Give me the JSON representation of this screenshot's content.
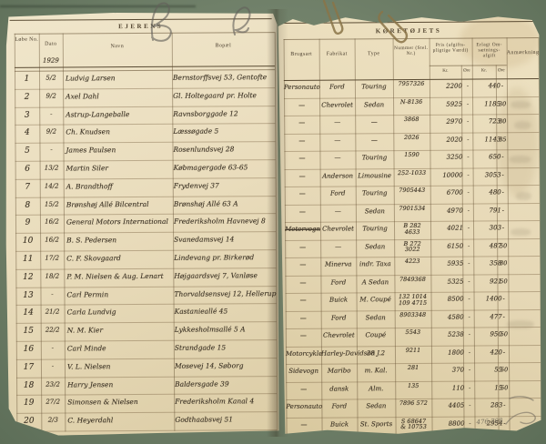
{
  "left_page": {
    "title": "EJERENS",
    "col_no": "Løbe No.",
    "col_date": "Dato",
    "col_name": "Navn",
    "col_address": "Bopæl",
    "year_note": "1929",
    "rows": [
      {
        "no": "1",
        "date": "5/2",
        "name": "Ludvig Larsen",
        "address": "Bernstorffsvej 53, Gentofte"
      },
      {
        "no": "2",
        "date": "9/2",
        "name": "Axel Dahl",
        "address": "Gl. Holtegaard pr. Holte"
      },
      {
        "no": "3",
        "date": "-",
        "name": "Astrup-Langeballe",
        "address": "Ravnsborggade 12"
      },
      {
        "no": "4",
        "date": "9/2",
        "name": "Ch. Knudsen",
        "address": "Læssøgade 5"
      },
      {
        "no": "5",
        "date": "-",
        "name": "James Paulsen",
        "address": "Rosenlundsvej 28"
      },
      {
        "no": "6",
        "date": "13/2",
        "name": "Martin Siler",
        "address": "Købmagergade 63-65"
      },
      {
        "no": "7",
        "date": "14/2",
        "name": "A. Brandthoff",
        "address": "Frydenvej 37"
      },
      {
        "no": "8",
        "date": "15/2",
        "name": "Brønshøj Allé Bilcentral",
        "address": "Brønshøj Allé 63 A"
      },
      {
        "no": "9",
        "date": "16/2",
        "name": "General Motors International",
        "address": "Frederiksholm Havnevej 8"
      },
      {
        "no": "10",
        "date": "16/2",
        "name": "B. S. Pedersen",
        "address": "Svanedamsvej 14"
      },
      {
        "no": "11",
        "date": "17/2",
        "name": "C. F. Skovgaard",
        "address": "Lindevang pr. Birkerød"
      },
      {
        "no": "12",
        "date": "18/2",
        "name": "P. M. Nielsen & Aug. Lenart",
        "address": "Højgaardsvej 7, Vanløse"
      },
      {
        "no": "13",
        "date": "-",
        "name": "Carl Permin",
        "address": "Thorvaldsensvej 12, Hellerup"
      },
      {
        "no": "14",
        "date": "21/2",
        "name": "Carla Lundvig",
        "address": "Kastanieallé 45"
      },
      {
        "no": "15",
        "date": "22/2",
        "name": "N. M. Kier",
        "address": "Lykkesholmsallé 5 A"
      },
      {
        "no": "16",
        "date": "-",
        "name": "Carl Minde",
        "address": "Strandgade 15"
      },
      {
        "no": "17",
        "date": "-",
        "name": "V. L. Nielsen",
        "address": "Mosevej 14, Søborg"
      },
      {
        "no": "18",
        "date": "23/2",
        "name": "Harry Jensen",
        "address": "Baldersgade 39"
      },
      {
        "no": "19",
        "date": "27/2",
        "name": "Simonsen & Nielsen",
        "address": "Frederiksholm Kanal 4"
      },
      {
        "no": "20",
        "date": "2/3",
        "name": "C. Heyerdahl",
        "address": "Godthaabsvej 51"
      }
    ]
  },
  "right_page": {
    "title": "KØRETØJETS",
    "col_use": "Brugsart",
    "col_make": "Fabrikat",
    "col_type": "Type",
    "col_number": "Nummer (Stel. Nr.)",
    "col_price": "Pris (afgifts- pligtige Værdi)",
    "col_tax": "Erlagt Om- sætnings- afgift",
    "col_remark": "Anmærkning",
    "unit_kr": "Kr.",
    "unit_ore": "Øre",
    "pencil_note": "476 708",
    "rows": [
      {
        "use": "Personauto",
        "make": "Ford",
        "type": "Touring",
        "number": "7957326",
        "price_kr": "2200",
        "price_ore": "-",
        "tax_kr": "440",
        "tax_ore": "-"
      },
      {
        "use": "—",
        "make": "Chevrolet",
        "type": "Sedan",
        "number": "N-8136",
        "price_kr": "5925",
        "price_ore": "-",
        "tax_kr": "1185",
        "tax_ore": "30"
      },
      {
        "use": "—",
        "make": "—",
        "type": "—",
        "number": "3868",
        "price_kr": "2970",
        "price_ore": "-",
        "tax_kr": "723",
        "tax_ore": "80"
      },
      {
        "use": "—",
        "make": "—",
        "type": "—",
        "number": "2026",
        "price_kr": "2020",
        "price_ore": "-",
        "tax_kr": "1143",
        "tax_ore": "85"
      },
      {
        "use": "—",
        "make": "—",
        "type": "Touring",
        "number": "1590",
        "price_kr": "3250",
        "price_ore": "-",
        "tax_kr": "650",
        "tax_ore": "-"
      },
      {
        "use": "—",
        "make": "Anderson",
        "type": "Limousine",
        "number": "252-1033",
        "price_kr": "10000",
        "price_ore": "-",
        "tax_kr": "3053",
        "tax_ore": "-"
      },
      {
        "use": "—",
        "make": "Ford",
        "type": "Touring",
        "number": "7905443",
        "price_kr": "6700",
        "price_ore": "-",
        "tax_kr": "480",
        "tax_ore": "-"
      },
      {
        "use": "—",
        "make": "—",
        "type": "Sedan",
        "number": "7901534",
        "price_kr": "4970",
        "price_ore": "-",
        "tax_kr": "791",
        "tax_ore": "-"
      },
      {
        "use_struck": "Motorvogn",
        "make": "Chevrolet",
        "type": "Touring",
        "number": "B 282\n4633",
        "price_kr": "4021",
        "price_ore": "-",
        "tax_kr": "303",
        "tax_ore": "-"
      },
      {
        "use": "—",
        "make": "—",
        "type": "Sedan",
        "number": "B 272\n3022",
        "price_kr": "6150",
        "price_ore": "-",
        "tax_kr": "487",
        "tax_ore": "50"
      },
      {
        "use": "—",
        "make": "Minerva",
        "type": "indr. Taxa",
        "number": "4223",
        "price_kr": "5935",
        "price_ore": "-",
        "tax_kr": "358",
        "tax_ore": "80"
      },
      {
        "use": "—",
        "make": "Ford",
        "type": "A Sedan",
        "number": "7849368",
        "price_kr": "5325",
        "price_ore": "-",
        "tax_kr": "921",
        "tax_ore": "50"
      },
      {
        "use": "—",
        "make": "Buick",
        "type": "M. Coupé",
        "number": "132 1014\n109 4715",
        "price_kr": "8500",
        "price_ore": "-",
        "tax_kr": "1400",
        "tax_ore": "-"
      },
      {
        "use": "—",
        "make": "Ford",
        "type": "Sedan",
        "number": "8903348",
        "price_kr": "4580",
        "price_ore": "-",
        "tax_kr": "477",
        "tax_ore": "-"
      },
      {
        "use": "—",
        "make": "Chevrolet",
        "type": "Coupé",
        "number": "5543",
        "price_kr": "5238",
        "price_ore": "-",
        "tax_kr": "950",
        "tax_ore": "50"
      },
      {
        "use": "Motorcykle",
        "make": "Harley-Davidson",
        "type": "28 J.2",
        "number": "9211",
        "price_kr": "1800",
        "price_ore": "-",
        "tax_kr": "420",
        "tax_ore": "-"
      },
      {
        "use": "Sidevogn",
        "make": "Maribo",
        "type": "m. Kal.",
        "number": "281",
        "price_kr": "370",
        "price_ore": "-",
        "tax_kr": "55",
        "tax_ore": "50"
      },
      {
        "use": "—",
        "make": "dansk",
        "type": "Alm.",
        "number": "135",
        "price_kr": "110",
        "price_ore": "-",
        "tax_kr": "15",
        "tax_ore": "50"
      },
      {
        "use": "Personauto",
        "make": "Ford",
        "type": "Sedan",
        "number": "7896 572",
        "price_kr": "4405",
        "price_ore": "-",
        "tax_kr": "283",
        "tax_ore": "-"
      },
      {
        "use": "—",
        "make": "Buick",
        "type": "St. Sports",
        "number": "S 68647\n& 10753",
        "price_kr": "8800",
        "price_ore": "-",
        "tax_kr": "2954",
        "tax_ore": "-"
      }
    ]
  }
}
